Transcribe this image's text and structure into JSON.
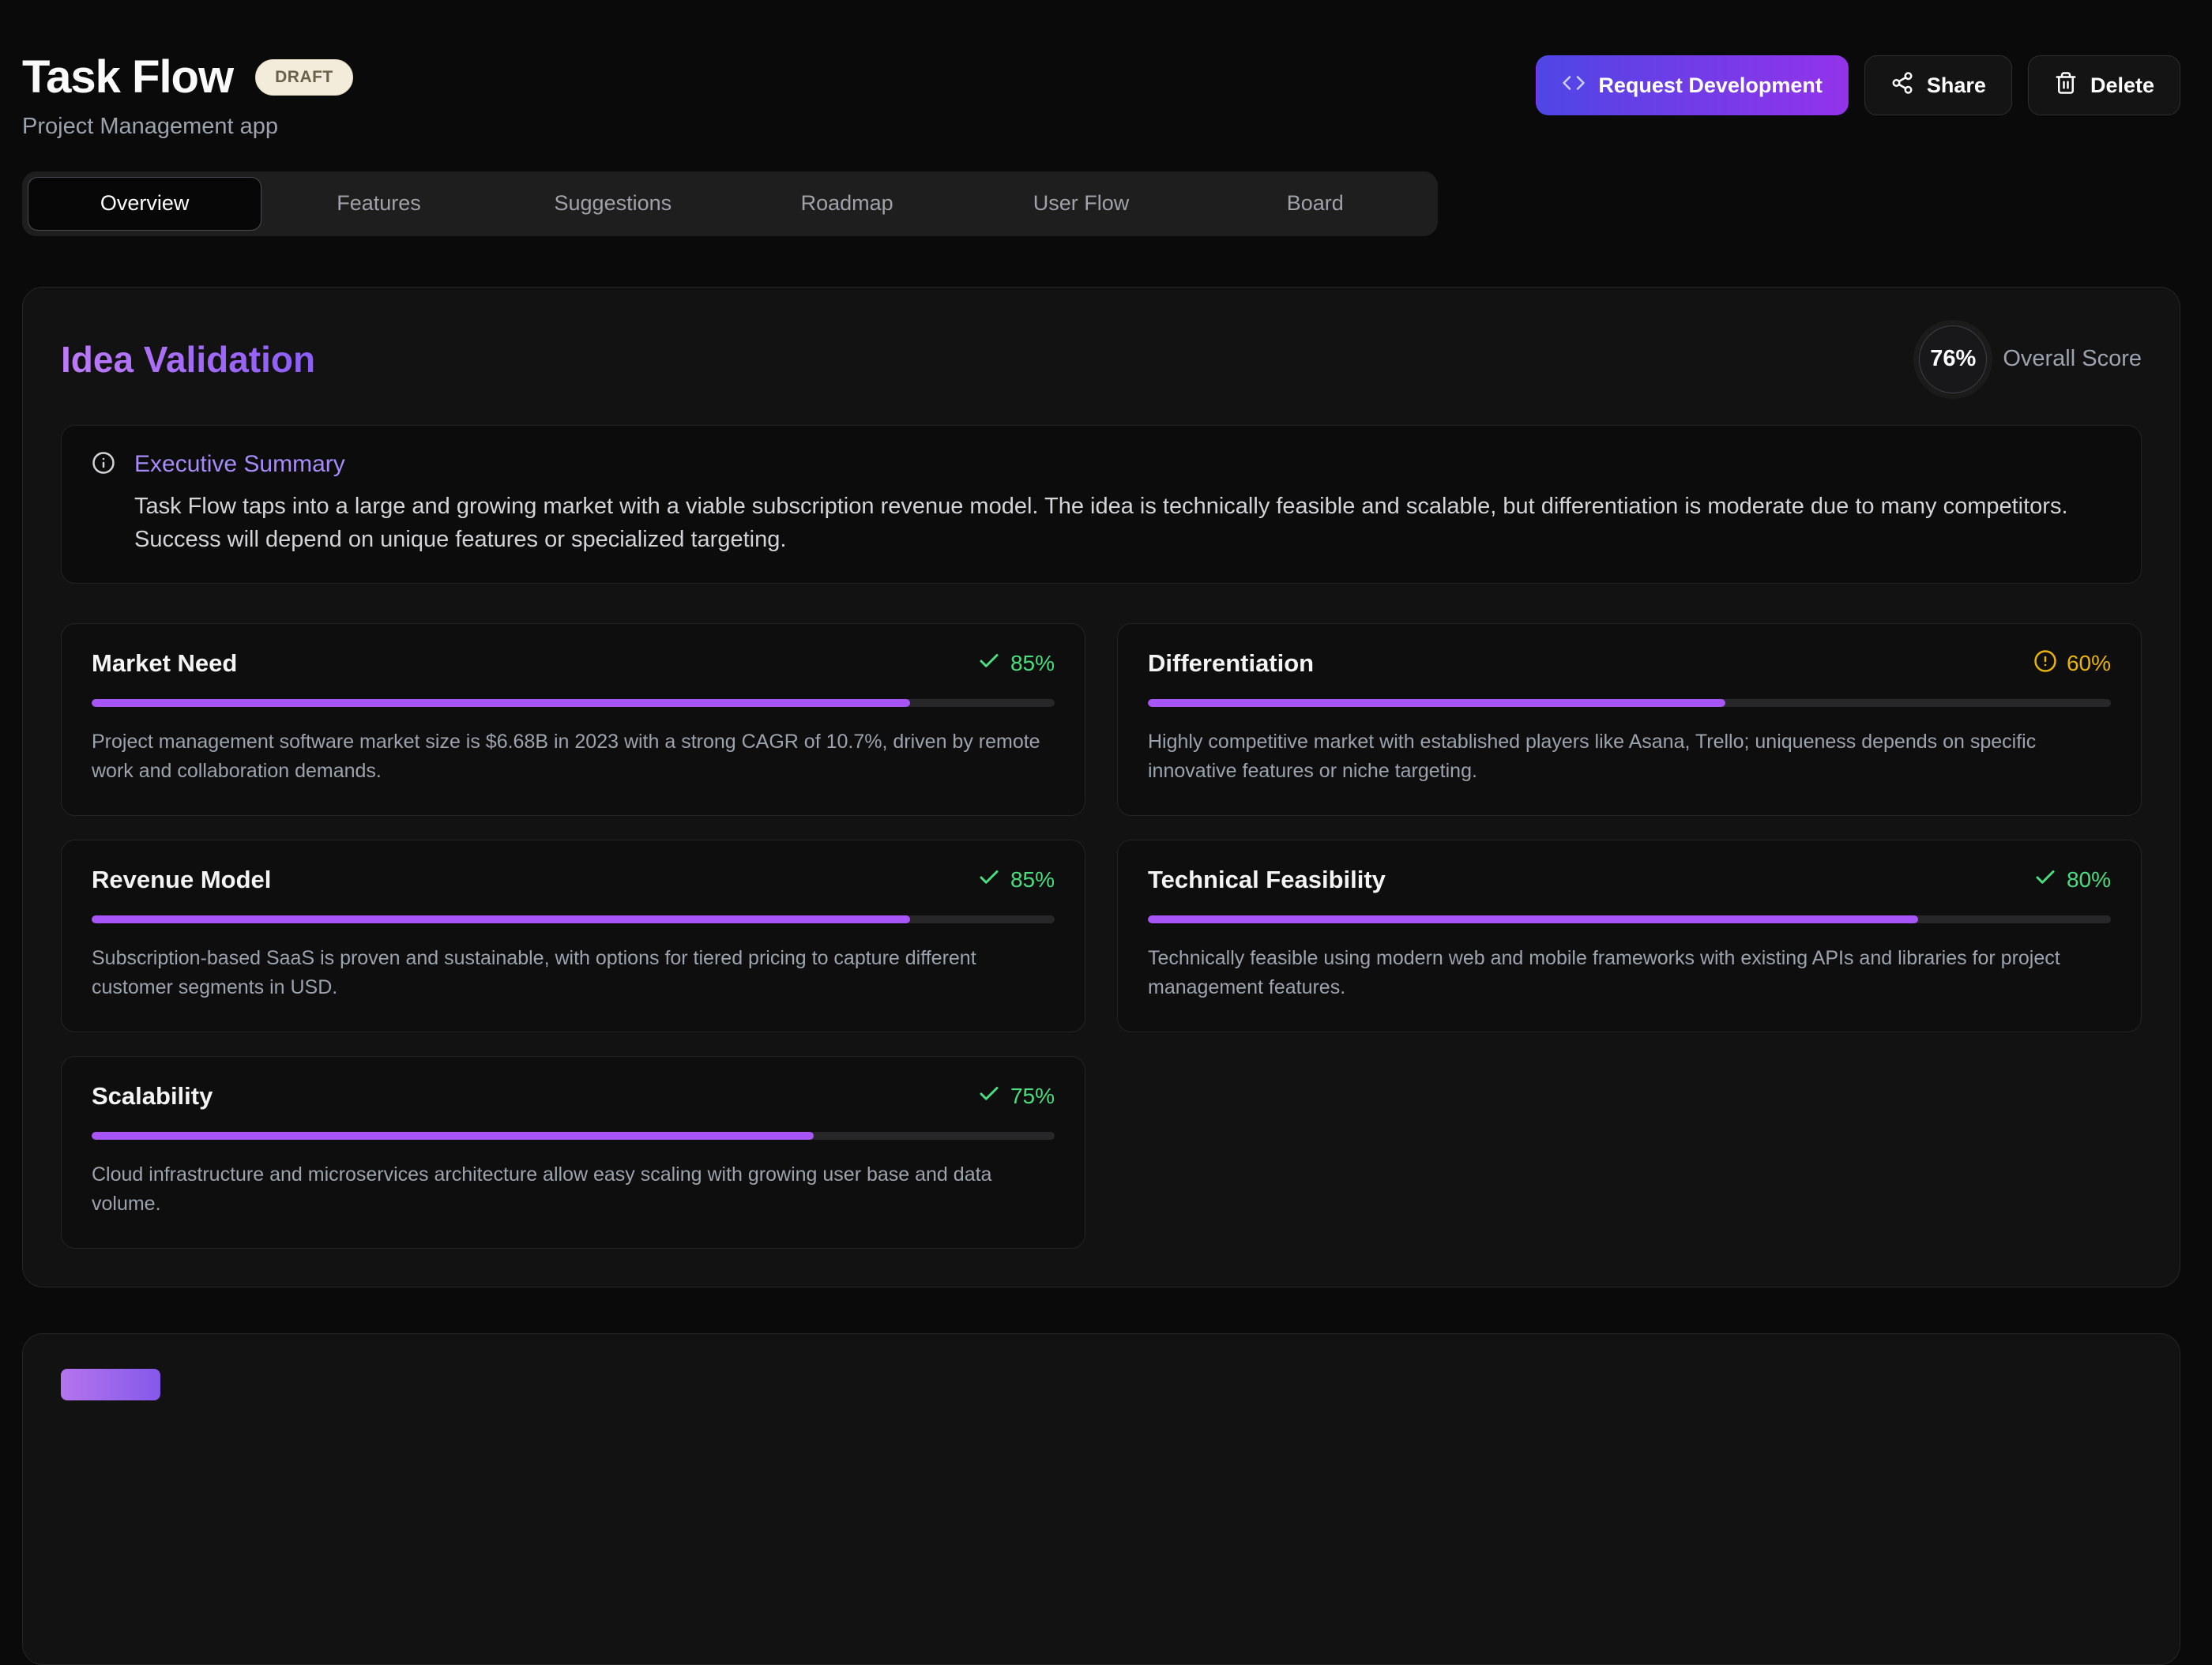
{
  "page": {
    "title": "Task Flow",
    "status_badge": "DRAFT",
    "subtitle": "Project Management app"
  },
  "actions": {
    "request_development": "Request Development",
    "share": "Share",
    "delete": "Delete"
  },
  "tabs": [
    {
      "label": "Overview",
      "active": true
    },
    {
      "label": "Features",
      "active": false
    },
    {
      "label": "Suggestions",
      "active": false
    },
    {
      "label": "Roadmap",
      "active": false
    },
    {
      "label": "User Flow",
      "active": false
    },
    {
      "label": "Board",
      "active": false
    }
  ],
  "idea_validation": {
    "title": "Idea Validation",
    "overall_score": "76%",
    "overall_score_label": "Overall Score",
    "executive_summary": {
      "title": "Executive Summary",
      "body": "Task Flow taps into a large and growing market with a viable subscription revenue model. The idea is technically feasible and scalable, but differentiation is moderate due to many competitors. Success will depend on unique features or specialized targeting."
    },
    "metrics": [
      {
        "name": "Market Need",
        "score": 85,
        "score_label": "85%",
        "status": "good",
        "description": "Project management software market size is $6.68B in 2023 with a strong CAGR of 10.7%, driven by remote work and collaboration demands."
      },
      {
        "name": "Differentiation",
        "score": 60,
        "score_label": "60%",
        "status": "warning",
        "description": "Highly competitive market with established players like Asana, Trello; uniqueness depends on specific innovative features or niche targeting."
      },
      {
        "name": "Revenue Model",
        "score": 85,
        "score_label": "85%",
        "status": "good",
        "description": "Subscription-based SaaS is proven and sustainable, with options for tiered pricing to capture different customer segments in USD."
      },
      {
        "name": "Technical Feasibility",
        "score": 80,
        "score_label": "80%",
        "status": "good",
        "description": "Technically feasible using modern web and mobile frameworks with existing APIs and libraries for project management features."
      },
      {
        "name": "Scalability",
        "score": 75,
        "score_label": "75%",
        "status": "good",
        "description": "Cloud infrastructure and microservices architecture allow easy scaling with growing user base and data volume."
      }
    ]
  },
  "icons": {
    "request_development": "code-icon",
    "share": "share-icon",
    "delete": "trash-icon",
    "executive_summary": "info-icon",
    "good": "check-icon",
    "warning": "alert-icon"
  },
  "colors": {
    "accent_purple": "#a855f7",
    "gradient_button_start": "#4f46e5",
    "gradient_button_end": "#9333ea",
    "success_green": "#4ade80",
    "warning_yellow": "#eab308",
    "badge_bg": "#f3ecda",
    "page_bg": "#0a0a0a"
  }
}
